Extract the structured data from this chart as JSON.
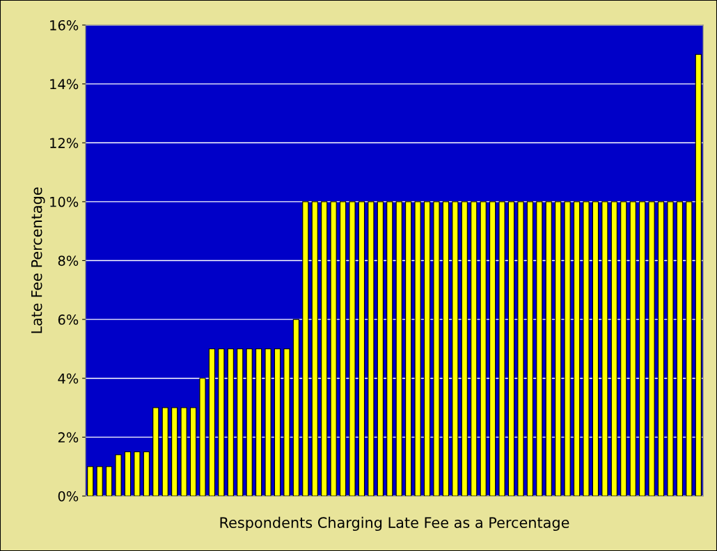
{
  "chart_data": {
    "type": "bar",
    "xlabel": "Respondents Charging Late Fee as a Percentage",
    "ylabel": "Late Fee Percentage",
    "categories": [
      null,
      null,
      null,
      null,
      null,
      null,
      null,
      null,
      null,
      null,
      null,
      null,
      null,
      null,
      null,
      null,
      null,
      null,
      null,
      null,
      null,
      null,
      null,
      null,
      null,
      null,
      null,
      null,
      null,
      null,
      null,
      null,
      null,
      null,
      null,
      null,
      null,
      null,
      null,
      null,
      null,
      null,
      null,
      null,
      null,
      null,
      null,
      null,
      null,
      null,
      null,
      null,
      null,
      null,
      null,
      null,
      null,
      null,
      null,
      null,
      null,
      null,
      null,
      null,
      null,
      null
    ],
    "values": [
      1,
      1,
      1,
      1.4,
      1.5,
      1.5,
      1.5,
      3,
      3,
      3,
      3,
      3,
      4,
      5,
      5,
      5,
      5,
      5,
      5,
      5,
      5,
      5,
      6,
      10,
      10,
      10,
      10,
      10,
      10,
      10,
      10,
      10,
      10,
      10,
      10,
      10,
      10,
      10,
      10,
      10,
      10,
      10,
      10,
      10,
      10,
      10,
      10,
      10,
      10,
      10,
      10,
      10,
      10,
      10,
      10,
      10,
      10,
      10,
      10,
      10,
      10,
      10,
      10,
      10,
      10,
      15
    ],
    "color": "#ffff00",
    "ylim": [
      0,
      16
    ],
    "yticks": [
      {
        "value": 0,
        "label": "0%"
      },
      {
        "value": 2,
        "label": "2%"
      },
      {
        "value": 4,
        "label": "4%"
      },
      {
        "value": 6,
        "label": "6%"
      },
      {
        "value": 8,
        "label": "8%"
      },
      {
        "value": 10,
        "label": "10%"
      },
      {
        "value": 12,
        "label": "12%"
      },
      {
        "value": 14,
        "label": "14%"
      },
      {
        "value": 16,
        "label": "16%"
      }
    ],
    "grid": "y",
    "legend": false
  }
}
